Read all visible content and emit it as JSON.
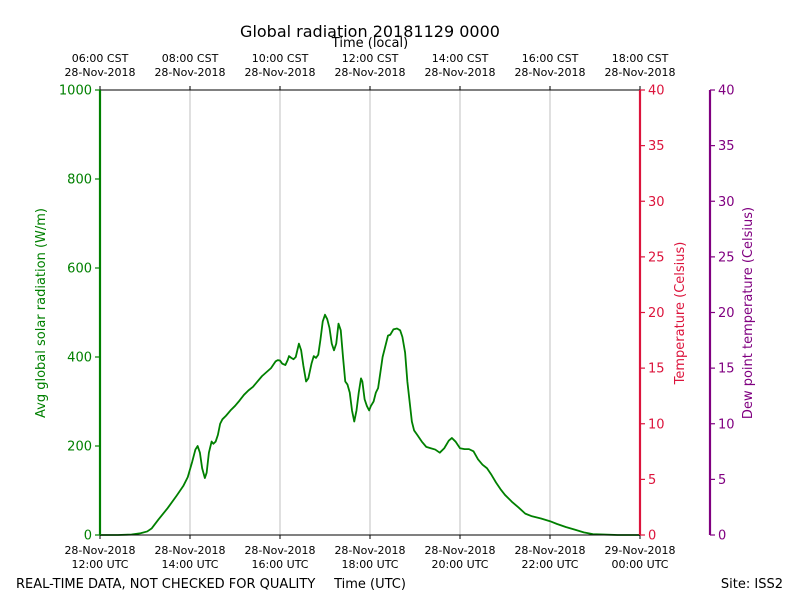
{
  "chart_data": {
    "type": "line",
    "title": "Global radiation 20181129 0000",
    "top_axis_label": "Time (local)",
    "xlabel": "Time (UTC)",
    "x_range_hours_utc": [
      12,
      24
    ],
    "x_ticks_utc": [
      {
        "hour": 12,
        "line1": "28-Nov-2018",
        "line2": "12:00 UTC"
      },
      {
        "hour": 14,
        "line1": "28-Nov-2018",
        "line2": "14:00 UTC"
      },
      {
        "hour": 16,
        "line1": "28-Nov-2018",
        "line2": "16:00 UTC"
      },
      {
        "hour": 18,
        "line1": "28-Nov-2018",
        "line2": "18:00 UTC"
      },
      {
        "hour": 20,
        "line1": "28-Nov-2018",
        "line2": "20:00 UTC"
      },
      {
        "hour": 22,
        "line1": "28-Nov-2018",
        "line2": "22:00 UTC"
      },
      {
        "hour": 24,
        "line1": "29-Nov-2018",
        "line2": "00:00 UTC"
      }
    ],
    "x_ticks_local": [
      {
        "hour": 12,
        "line1": "06:00 CST",
        "line2": "28-Nov-2018"
      },
      {
        "hour": 14,
        "line1": "08:00 CST",
        "line2": "28-Nov-2018"
      },
      {
        "hour": 16,
        "line1": "10:00 CST",
        "line2": "28-Nov-2018"
      },
      {
        "hour": 18,
        "line1": "12:00 CST",
        "line2": "28-Nov-2018"
      },
      {
        "hour": 20,
        "line1": "14:00 CST",
        "line2": "28-Nov-2018"
      },
      {
        "hour": 22,
        "line1": "16:00 CST",
        "line2": "28-Nov-2018"
      },
      {
        "hour": 24,
        "line1": "18:00 CST",
        "line2": "28-Nov-2018"
      }
    ],
    "y_axes": [
      {
        "name": "radiation",
        "label": "Avg global solar radiation (W/m)",
        "ylim": [
          0,
          1000
        ],
        "ticks": [
          0,
          200,
          400,
          600,
          800,
          1000
        ],
        "color": "#008000"
      },
      {
        "name": "temperature",
        "label": "Temperature (Celsius)",
        "ylim": [
          0,
          40
        ],
        "ticks": [
          0,
          5,
          10,
          15,
          20,
          25,
          30,
          35,
          40
        ],
        "color": "#dc143c"
      },
      {
        "name": "dewpoint",
        "label": "Dew point temperature (Celsius)",
        "ylim": [
          0,
          40
        ],
        "ticks": [
          0,
          5,
          10,
          15,
          20,
          25,
          30,
          35,
          40
        ],
        "color": "#800080"
      }
    ],
    "grid": "vertical",
    "series": [
      {
        "name": "Avg global solar radiation",
        "axis": "radiation",
        "color": "#008000",
        "points": [
          [
            12.0,
            0
          ],
          [
            12.4,
            0
          ],
          [
            12.7,
            1
          ],
          [
            12.9,
            4
          ],
          [
            13.05,
            8
          ],
          [
            13.15,
            15
          ],
          [
            13.3,
            35
          ],
          [
            13.5,
            60
          ],
          [
            13.7,
            88
          ],
          [
            13.85,
            110
          ],
          [
            13.95,
            130
          ],
          [
            14.05,
            165
          ],
          [
            14.12,
            192
          ],
          [
            14.17,
            200
          ],
          [
            14.22,
            185
          ],
          [
            14.27,
            150
          ],
          [
            14.33,
            128
          ],
          [
            14.37,
            140
          ],
          [
            14.42,
            185
          ],
          [
            14.48,
            210
          ],
          [
            14.52,
            205
          ],
          [
            14.57,
            210
          ],
          [
            14.62,
            225
          ],
          [
            14.67,
            250
          ],
          [
            14.72,
            260
          ],
          [
            14.8,
            268
          ],
          [
            14.9,
            280
          ],
          [
            15.0,
            290
          ],
          [
            15.1,
            302
          ],
          [
            15.2,
            315
          ],
          [
            15.3,
            325
          ],
          [
            15.4,
            333
          ],
          [
            15.5,
            345
          ],
          [
            15.6,
            357
          ],
          [
            15.7,
            366
          ],
          [
            15.8,
            375
          ],
          [
            15.9,
            390
          ],
          [
            15.95,
            393
          ],
          [
            16.0,
            392
          ],
          [
            16.05,
            385
          ],
          [
            16.12,
            382
          ],
          [
            16.17,
            393
          ],
          [
            16.2,
            402
          ],
          [
            16.25,
            398
          ],
          [
            16.3,
            395
          ],
          [
            16.35,
            400
          ],
          [
            16.42,
            430
          ],
          [
            16.47,
            415
          ],
          [
            16.52,
            380
          ],
          [
            16.58,
            345
          ],
          [
            16.63,
            352
          ],
          [
            16.7,
            385
          ],
          [
            16.75,
            402
          ],
          [
            16.8,
            398
          ],
          [
            16.85,
            405
          ],
          [
            16.9,
            440
          ],
          [
            16.95,
            480
          ],
          [
            17.0,
            495
          ],
          [
            17.05,
            485
          ],
          [
            17.1,
            465
          ],
          [
            17.15,
            430
          ],
          [
            17.2,
            415
          ],
          [
            17.25,
            430
          ],
          [
            17.3,
            475
          ],
          [
            17.35,
            460
          ],
          [
            17.4,
            400
          ],
          [
            17.45,
            345
          ],
          [
            17.5,
            338
          ],
          [
            17.55,
            320
          ],
          [
            17.6,
            280
          ],
          [
            17.65,
            255
          ],
          [
            17.7,
            280
          ],
          [
            17.75,
            320
          ],
          [
            17.8,
            352
          ],
          [
            17.83,
            345
          ],
          [
            17.88,
            305
          ],
          [
            17.93,
            290
          ],
          [
            17.98,
            280
          ],
          [
            18.02,
            290
          ],
          [
            18.08,
            300
          ],
          [
            18.13,
            320
          ],
          [
            18.18,
            330
          ],
          [
            18.23,
            365
          ],
          [
            18.28,
            400
          ],
          [
            18.33,
            420
          ],
          [
            18.4,
            448
          ],
          [
            18.45,
            450
          ],
          [
            18.52,
            462
          ],
          [
            18.6,
            464
          ],
          [
            18.67,
            460
          ],
          [
            18.72,
            445
          ],
          [
            18.78,
            410
          ],
          [
            18.83,
            345
          ],
          [
            18.88,
            300
          ],
          [
            18.93,
            255
          ],
          [
            18.98,
            235
          ],
          [
            19.05,
            225
          ],
          [
            19.15,
            210
          ],
          [
            19.25,
            198
          ],
          [
            19.35,
            195
          ],
          [
            19.45,
            192
          ],
          [
            19.55,
            185
          ],
          [
            19.65,
            195
          ],
          [
            19.75,
            212
          ],
          [
            19.82,
            218
          ],
          [
            19.9,
            210
          ],
          [
            20.0,
            195
          ],
          [
            20.1,
            193
          ],
          [
            20.2,
            193
          ],
          [
            20.3,
            188
          ],
          [
            20.4,
            170
          ],
          [
            20.5,
            158
          ],
          [
            20.6,
            150
          ],
          [
            20.7,
            135
          ],
          [
            20.8,
            118
          ],
          [
            20.9,
            103
          ],
          [
            21.0,
            90
          ],
          [
            21.15,
            75
          ],
          [
            21.3,
            62
          ],
          [
            21.45,
            48
          ],
          [
            21.6,
            42
          ],
          [
            21.8,
            37
          ],
          [
            22.0,
            31
          ],
          [
            22.15,
            25
          ],
          [
            22.35,
            18
          ],
          [
            22.55,
            12
          ],
          [
            22.75,
            6
          ],
          [
            22.95,
            2
          ],
          [
            23.2,
            1
          ],
          [
            23.5,
            0
          ],
          [
            24.0,
            0
          ]
        ]
      }
    ]
  },
  "footer": {
    "left_note": "REAL-TIME DATA, NOT CHECKED FOR QUALITY",
    "site": "Site: ISS2"
  }
}
